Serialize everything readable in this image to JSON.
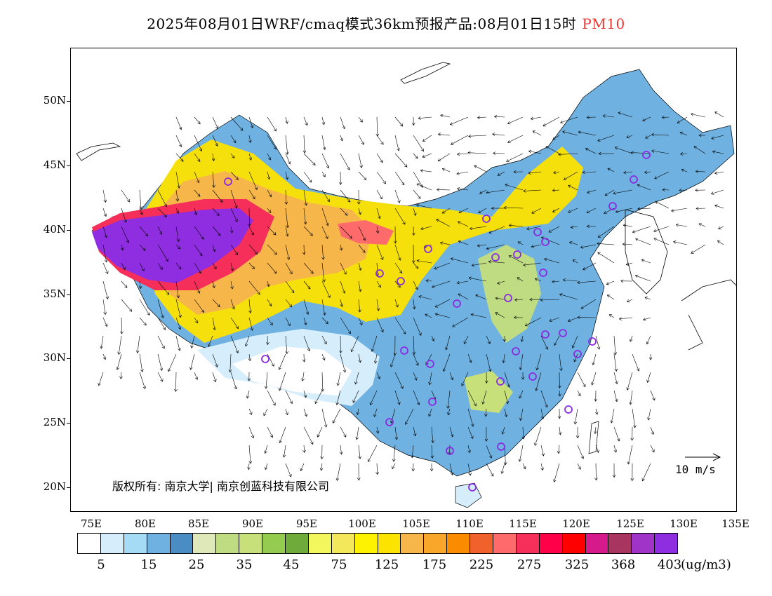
{
  "title": {
    "main": "2025年08月01日WRF/cmaq模式36km预报产品:08月01日15时",
    "pollutant": "PM10",
    "pollutant_color": "#e8372f"
  },
  "map": {
    "lat_labels": [
      "50N",
      "45N",
      "40N",
      "35N",
      "30N",
      "25N",
      "20N"
    ],
    "lon_labels": [
      "75E",
      "80E",
      "85E",
      "90E",
      "95E",
      "100E",
      "105E",
      "110E",
      "115E",
      "120E",
      "125E",
      "130E",
      "135E"
    ],
    "copyright": "版权所有: 南京大学| 南京创蓝科技有限公司",
    "wind_reference": "10 m/s"
  },
  "colorbar": {
    "colors": [
      "#ffffff",
      "#d6eefb",
      "#a6dbf5",
      "#6fb1e0",
      "#4a8dc4",
      "#dfe8b8",
      "#bfdc82",
      "#c7e07a",
      "#93cc4f",
      "#6fab3a",
      "#f2f75e",
      "#f3e75b",
      "#fff200",
      "#fde300",
      "#f6b64a",
      "#f9a72b",
      "#fb8c00",
      "#f0612b",
      "#ff6b6b",
      "#f52f5a",
      "#ff0049",
      "#ff0000",
      "#d61a8c",
      "#a8355f",
      "#a033c8",
      "#8e2ee0"
    ],
    "labels": [
      "5",
      "15",
      "25",
      "35",
      "45",
      "75",
      "125",
      "175",
      "225",
      "275",
      "325",
      "368",
      "403"
    ],
    "unit": "(ug/m3)"
  },
  "legend_categories": [
    "5",
    "15",
    "25",
    "35",
    "45",
    "75",
    "125",
    "175",
    "225",
    "275",
    "325",
    "368",
    "403"
  ]
}
